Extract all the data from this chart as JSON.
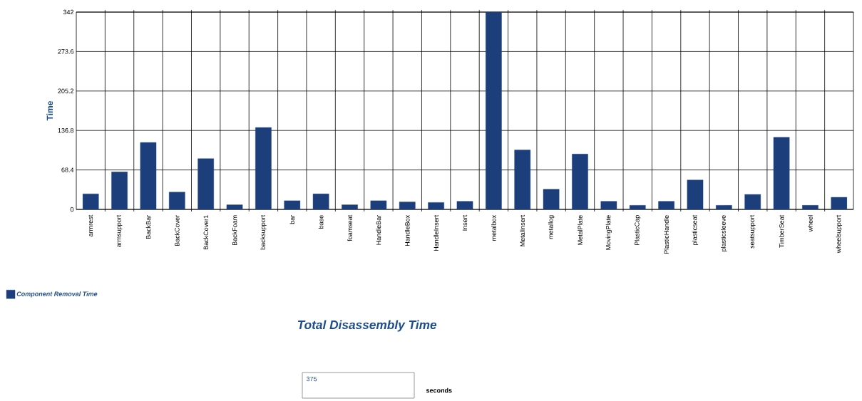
{
  "chart_data": {
    "type": "bar",
    "title": "Total Disassembly Time",
    "ylabel": "Time",
    "categories": [
      "armrest",
      "armsupport",
      "BackBar",
      "BackCover",
      "BackCover1",
      "BackFoam",
      "backsupport",
      "bar",
      "base",
      "foamseat",
      "HandleBar",
      "HandleBox",
      "HandleInsert",
      "Insert",
      "metalbox",
      "MetalInsert",
      "metallog",
      "MetalPlate",
      "MovingPlate",
      "PlasticCap",
      "PlasticHandle",
      "plasticseat",
      "plasticsleeve",
      "seatsupport",
      "TimberSeat",
      "wheel",
      "wheelsupport"
    ],
    "series": [
      {
        "name": "Component Removal Time",
        "color": "#1c3f7c",
        "values": [
          27,
          65,
          116,
          30,
          88,
          8,
          142,
          15,
          27,
          8,
          15,
          13,
          12,
          14,
          342,
          103,
          35,
          96,
          14,
          7,
          14,
          51,
          7,
          26,
          125,
          7,
          21
        ]
      }
    ],
    "ylim": [
      0,
      342
    ],
    "yticks": [
      0,
      68.4,
      136.8,
      205.2,
      273.6,
      342
    ],
    "grid": true,
    "legend": "bottom left",
    "annotations": [
      "375",
      "seconds"
    ]
  }
}
